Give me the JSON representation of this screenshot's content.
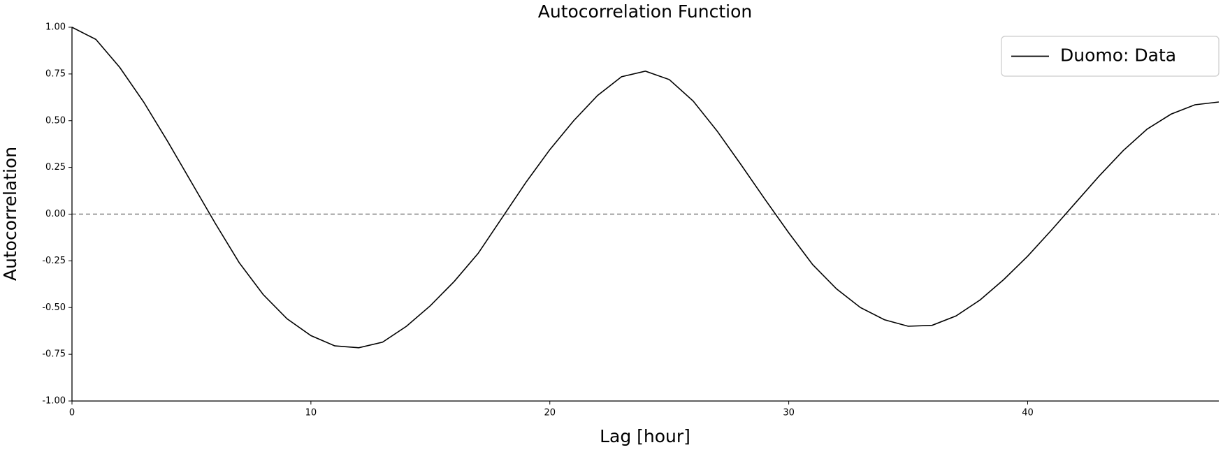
{
  "chart_data": {
    "type": "line",
    "title": "Autocorrelation Function",
    "xlabel": "Lag [hour]",
    "ylabel": "Autocorrelation",
    "x": [
      0,
      1,
      2,
      3,
      4,
      5,
      6,
      7,
      8,
      9,
      10,
      11,
      12,
      13,
      14,
      15,
      16,
      17,
      18,
      19,
      20,
      21,
      22,
      23,
      24,
      25,
      26,
      27,
      28,
      29,
      30,
      31,
      32,
      33,
      34,
      35,
      36,
      37,
      38,
      39,
      40,
      41,
      42,
      43,
      44,
      45,
      46,
      47,
      48
    ],
    "series": [
      {
        "name": "Duomo: Data",
        "color": "#000000",
        "values": [
          1.0,
          0.935,
          0.785,
          0.6,
          0.39,
          0.17,
          -0.05,
          -0.26,
          -0.43,
          -0.56,
          -0.65,
          -0.705,
          -0.715,
          -0.685,
          -0.6,
          -0.49,
          -0.36,
          -0.21,
          -0.02,
          0.17,
          0.345,
          0.5,
          0.635,
          0.735,
          0.765,
          0.72,
          0.605,
          0.445,
          0.265,
          0.08,
          -0.1,
          -0.27,
          -0.4,
          -0.5,
          -0.565,
          -0.6,
          -0.595,
          -0.545,
          -0.46,
          -0.35,
          -0.225,
          -0.085,
          0.06,
          0.205,
          0.34,
          0.455,
          0.535,
          0.585,
          0.6
        ]
      }
    ],
    "xlim": [
      0,
      48
    ],
    "xticks": [
      0,
      10,
      20,
      30,
      40
    ],
    "ylim": [
      -1,
      1
    ],
    "yticks": [
      {
        "value": -1,
        "label": "-1.00"
      },
      {
        "value": -0.75,
        "label": "-0.75"
      },
      {
        "value": -0.5,
        "label": "-0.50"
      },
      {
        "value": -0.25,
        "label": "-0.25"
      },
      {
        "value": 0,
        "label": "0.00"
      },
      {
        "value": 0.25,
        "label": "0.25"
      },
      {
        "value": 0.5,
        "label": "0.50"
      },
      {
        "value": 0.75,
        "label": "0.75"
      },
      {
        "value": 1,
        "label": "1.00"
      }
    ],
    "reference_line": {
      "y": 0,
      "color": "#808080",
      "dash": true
    },
    "legend": "upper right",
    "grid": false
  }
}
